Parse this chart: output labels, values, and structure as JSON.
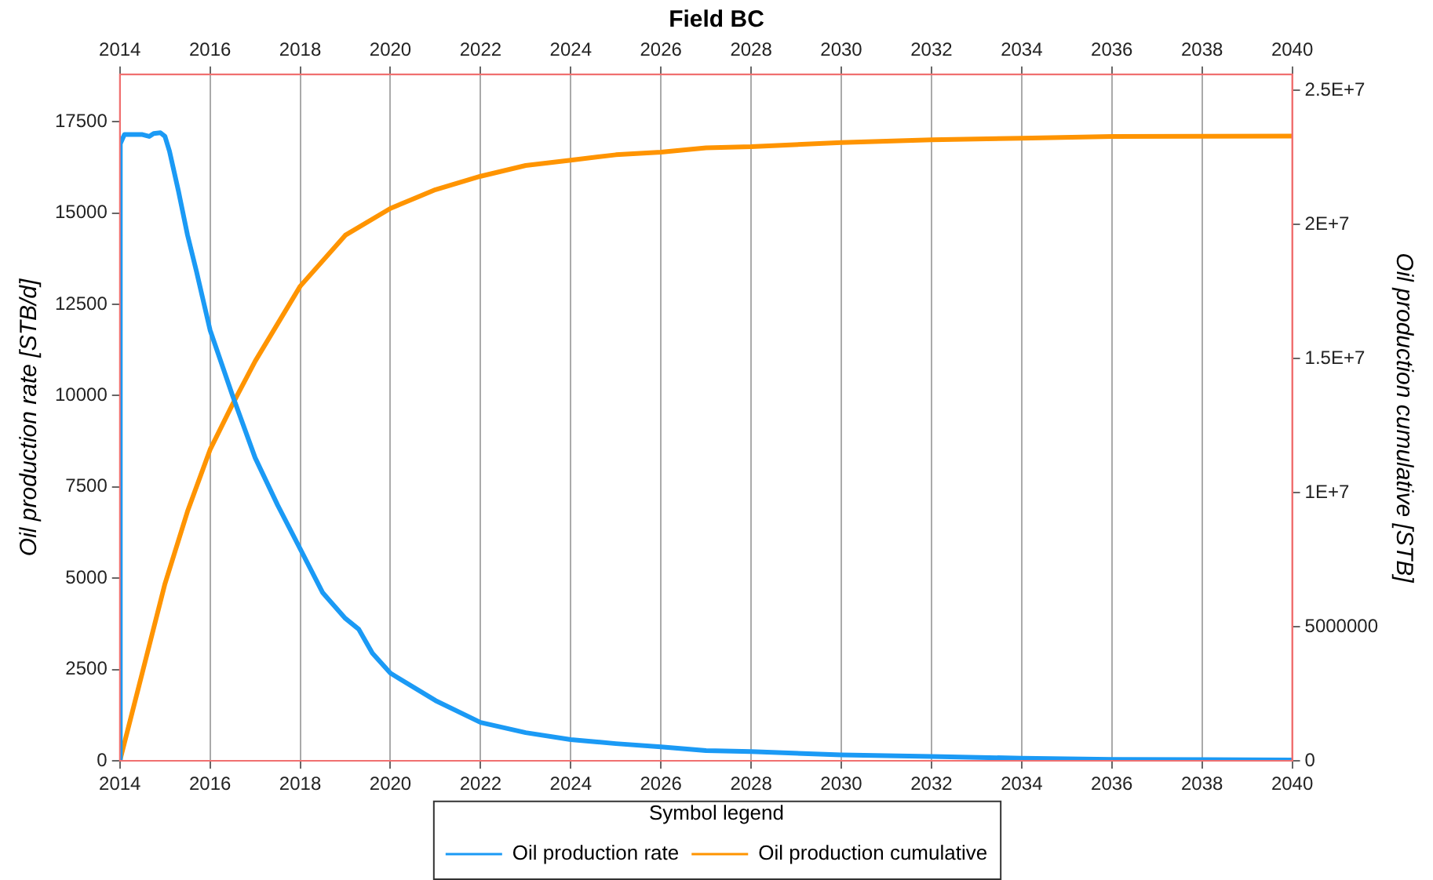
{
  "chart_data": {
    "type": "line",
    "title": "Field BC",
    "ylabel": "Oil production rate [STB/d]",
    "y2label": "Oil production cumulative [STB]",
    "legend_title": "Symbol legend",
    "legend": "bottom",
    "grid": "x",
    "marker": "none",
    "line_style": "solid",
    "xlim": [
      2014,
      2040
    ],
    "xticks": [
      2014,
      2016,
      2018,
      2020,
      2022,
      2024,
      2026,
      2028,
      2030,
      2032,
      2034,
      2036,
      2038,
      2040
    ],
    "x2lim": [
      2014,
      2040
    ],
    "x2ticks": [
      2014,
      2016,
      2018,
      2020,
      2022,
      2024,
      2026,
      2028,
      2030,
      2032,
      2034,
      2036,
      2038,
      2040
    ],
    "ylim": [
      0,
      18800
    ],
    "yticks": [
      0,
      2500,
      5000,
      7500,
      10000,
      12500,
      15000,
      17500
    ],
    "y2lim": [
      0,
      25600000
    ],
    "y2ticks": [
      0,
      5000000,
      {
        "value": 10000000,
        "label": "1E+7"
      },
      {
        "value": 15000000,
        "label": "1.5E+7"
      },
      {
        "value": 20000000,
        "label": "2E+7"
      },
      {
        "value": 25000000,
        "label": "2.5E+7"
      }
    ],
    "series": [
      {
        "name": "Oil production rate",
        "color": "#1b9af5",
        "x": [
          2014,
          2014.01,
          2014.1,
          2014.5,
          2014.65,
          2014.75,
          2014.9,
          2015,
          2015.1,
          2015.3,
          2015.5,
          2015.7,
          2016,
          2016.5,
          2017,
          2017.5,
          2018,
          2018.5,
          2019,
          2019.3,
          2019.6,
          2020,
          2021,
          2022,
          2023,
          2024,
          2025,
          2026,
          2027,
          2028,
          2030,
          2032,
          2034,
          2036,
          2038,
          2040
        ],
        "values": [
          0,
          16900,
          17150,
          17150,
          17100,
          17180,
          17200,
          17100,
          16700,
          15600,
          14400,
          13400,
          11800,
          10000,
          8300,
          7000,
          5800,
          4600,
          3900,
          3600,
          2950,
          2400,
          1650,
          1050,
          770,
          580,
          470,
          380,
          280,
          250,
          160,
          120,
          70,
          40,
          30,
          20
        ]
      },
      {
        "name": "Oil production cumulative",
        "color": "#ff9400",
        "axis": "y2",
        "x": [
          2014,
          2014.5,
          2015,
          2015.5,
          2016,
          2016.5,
          2017,
          2018,
          2019,
          2020,
          2021,
          2022,
          2023,
          2024,
          2025,
          2026,
          2027,
          2028,
          2030,
          2032,
          2034,
          2036,
          2038,
          2040
        ],
        "values": [
          0,
          3300000,
          6600000,
          9300000,
          11600000,
          13300000,
          14900000,
          17700000,
          19600000,
          20600000,
          21300000,
          21800000,
          22200000,
          22400000,
          22600000,
          22700000,
          22860000,
          22900000,
          23060000,
          23160000,
          23220000,
          23280000,
          23290000,
          23300000
        ]
      }
    ]
  }
}
